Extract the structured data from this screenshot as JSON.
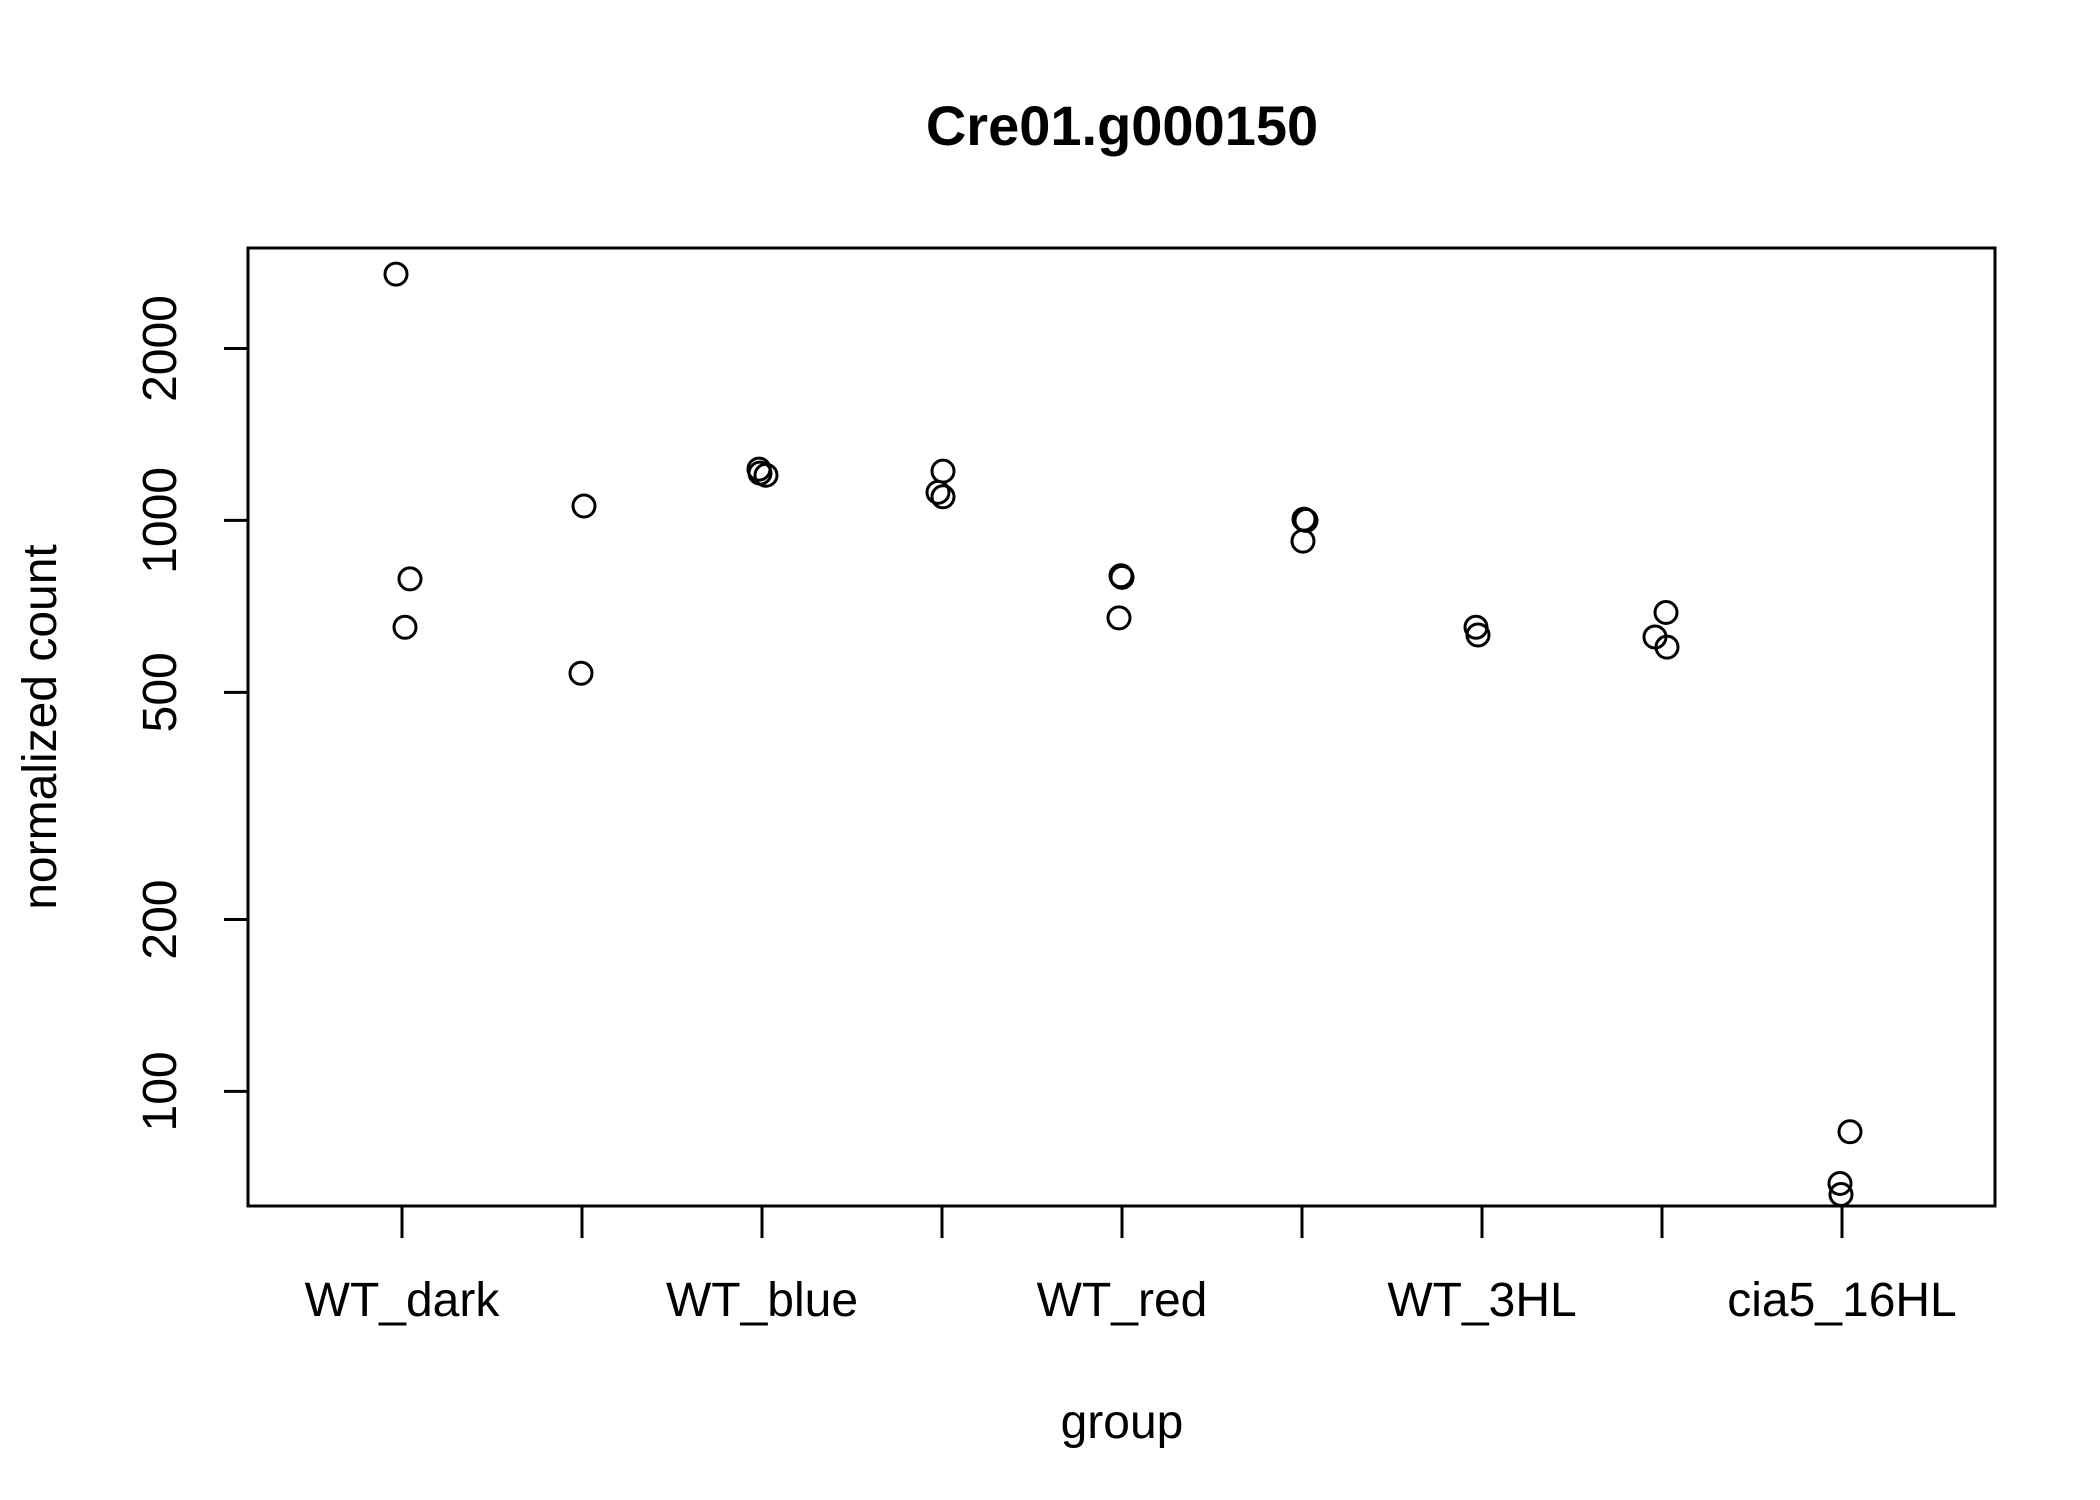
{
  "chart_data": {
    "type": "scatter",
    "title": "Cre01.g000150",
    "xlabel": "group",
    "ylabel": "normalized count",
    "y_scale": "log",
    "ylim": [
      63,
      3000
    ],
    "y_ticks": [
      100,
      200,
      500,
      1000,
      2000
    ],
    "categories": [
      "WT_dark",
      "WT_blue",
      "WT_red",
      "WT_3HL",
      "cia5_16HL"
    ],
    "category_ticks": 9,
    "grid": false,
    "legend": "none",
    "series": [
      {
        "points": [
          {
            "group": 1,
            "y": 2700
          },
          {
            "group": 1,
            "y": 790
          },
          {
            "group": 1,
            "y": 650
          },
          {
            "group": 2,
            "y": 1060
          },
          {
            "group": 2,
            "y": 540
          },
          {
            "group": 3,
            "y": 1230
          },
          {
            "group": 3,
            "y": 1210
          },
          {
            "group": 3,
            "y": 1200
          },
          {
            "group": 4,
            "y": 1220
          },
          {
            "group": 4,
            "y": 1120
          },
          {
            "group": 4,
            "y": 1100
          },
          {
            "group": 5,
            "y": 800
          },
          {
            "group": 5,
            "y": 795
          },
          {
            "group": 5,
            "y": 675
          },
          {
            "group": 6,
            "y": 1005
          },
          {
            "group": 6,
            "y": 1000
          },
          {
            "group": 6,
            "y": 920
          },
          {
            "group": 7,
            "y": 650
          },
          {
            "group": 7,
            "y": 630
          },
          {
            "group": 8,
            "y": 690
          },
          {
            "group": 8,
            "y": 625
          },
          {
            "group": 8,
            "y": 600
          },
          {
            "group": 9,
            "y": 85
          },
          {
            "group": 9,
            "y": 69
          },
          {
            "group": 9,
            "y": 66
          }
        ]
      }
    ]
  }
}
